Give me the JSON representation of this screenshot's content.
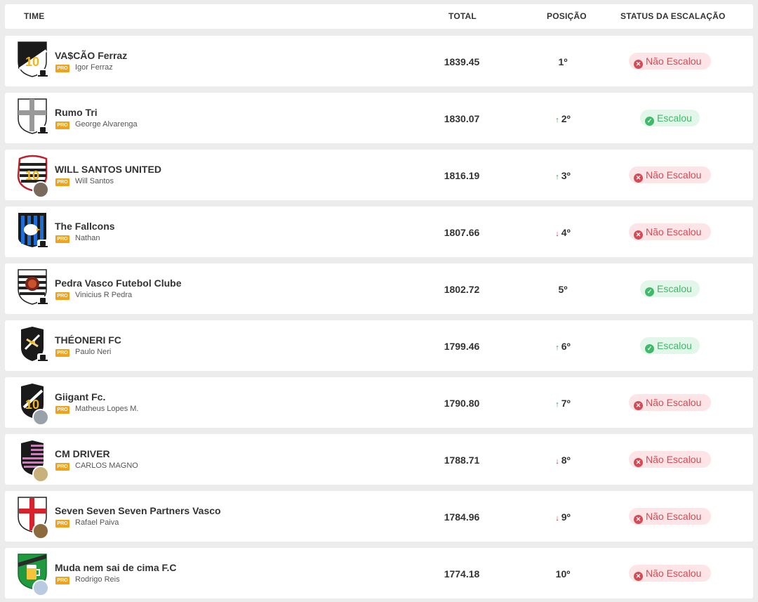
{
  "header": {
    "team_col": "TIME",
    "total_col": "TOTAL",
    "position_col": "POSIÇÃO",
    "status_col": "STATUS DA ESCALAÇÃO"
  },
  "pro_label": "PRO",
  "rows": [
    {
      "team": "VA$CÃO Ferraz",
      "owner": "Igor Ferraz",
      "total": "1839.45",
      "position": "1º",
      "trend": "",
      "status": "Não Escalou",
      "escalou": false,
      "crest_icon": "vasco-crest-10-icon"
    },
    {
      "team": "Rumo Tri",
      "owner": "George Alvarenga",
      "total": "1830.07",
      "position": "2º",
      "trend": "↑",
      "status": "Escalou",
      "escalou": true,
      "crest_icon": "white-cross-crest-icon"
    },
    {
      "team": "WILL SANTOS UNITED",
      "owner": "Will Santos",
      "total": "1816.19",
      "position": "3º",
      "trend": "↑",
      "status": "Não Escalou",
      "escalou": false,
      "crest_icon": "striped-crest-10-icon"
    },
    {
      "team": "The Fallcons",
      "owner": "Nathan",
      "total": "1807.66",
      "position": "4º",
      "trend": "↓",
      "status": "Não Escalou",
      "escalou": false,
      "crest_icon": "eagle-crest-icon"
    },
    {
      "team": "Pedra Vasco Futebol Clube",
      "owner": "Vinicius R Pedra",
      "total": "1802.72",
      "position": "5º",
      "trend": "",
      "status": "Escalou",
      "escalou": true,
      "crest_icon": "lion-crest-icon"
    },
    {
      "team": "THÉONERI FC",
      "owner": "Paulo Neri",
      "total": "1799.46",
      "position": "6º",
      "trend": "↑",
      "status": "Escalou",
      "escalou": true,
      "crest_icon": "black-cross-crest-icon"
    },
    {
      "team": "Giigant Fc.",
      "owner": "Matheus Lopes M.",
      "total": "1790.80",
      "position": "7º",
      "trend": "↑",
      "status": "Não Escalou",
      "escalou": false,
      "crest_icon": "black-crest-10-icon"
    },
    {
      "team": "CM DRIVER",
      "owner": "CARLOS MAGNO",
      "total": "1788.71",
      "position": "8º",
      "trend": "↓",
      "status": "Não Escalou",
      "escalou": false,
      "crest_icon": "pink-striped-crest-icon"
    },
    {
      "team": "Seven Seven Seven Partners Vasco",
      "owner": "Rafael Paiva",
      "total": "1784.96",
      "position": "9º",
      "trend": "↓",
      "status": "Não Escalou",
      "escalou": false,
      "crest_icon": "red-cross-crest-icon"
    },
    {
      "team": "Muda nem sai de cima F.C",
      "owner": "Rodrigo Reis",
      "total": "1774.18",
      "position": "10º",
      "trend": "",
      "status": "Não Escalou",
      "escalou": false,
      "crest_icon": "green-beer-crest-icon"
    }
  ],
  "colors": {
    "no_bg": "#fde4e6",
    "no_fg": "#d44b55",
    "yes_bg": "#e2f6e9",
    "yes_fg": "#3fb96a",
    "pro": "#f0a21a",
    "up": "#2ea44f",
    "down": "#c8323c"
  }
}
